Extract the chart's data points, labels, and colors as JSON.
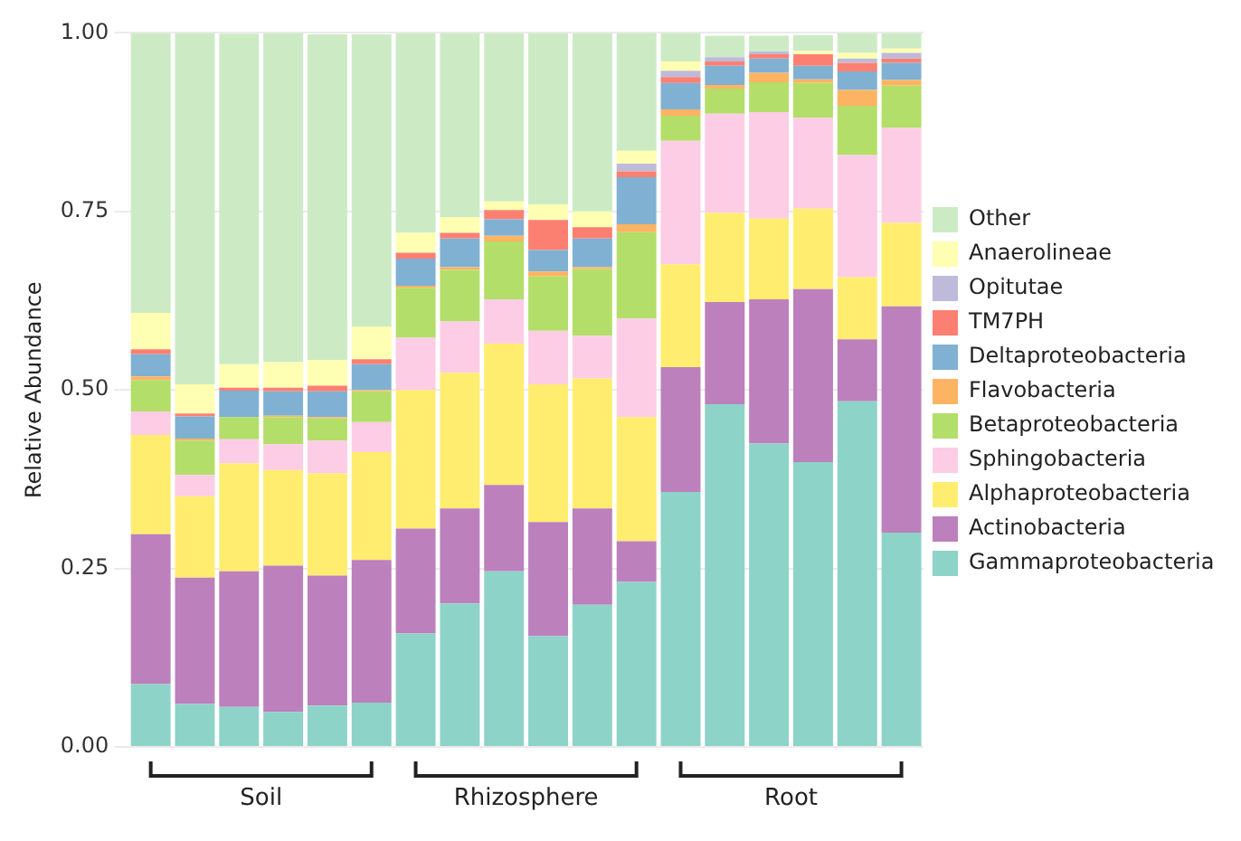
{
  "chart_data": {
    "type": "bar",
    "stacked": true,
    "ylabel": "Relative Abundance",
    "categories": [
      null,
      null,
      null,
      null,
      null,
      null,
      null,
      null,
      null,
      null,
      null,
      null,
      null,
      null,
      null,
      null,
      null,
      null
    ],
    "annotations": [
      "Soil",
      "Rhizosphere",
      "Root"
    ],
    "ylim": [
      0,
      1
    ],
    "yticks": [
      {
        "value": 0,
        "label": "0.00"
      },
      {
        "value": 0.25,
        "label": "0.25"
      },
      {
        "value": 0.5,
        "label": "0.50"
      },
      {
        "value": 0.75,
        "label": "0.75"
      },
      {
        "value": 1,
        "label": "1.00"
      }
    ],
    "grid": "y",
    "legend": "right",
    "tick_labels": "y",
    "series": [
      {
        "name": "Gammaproteobacteria",
        "color": "#8dd3c7",
        "values": [
          0.088,
          0.06,
          0.056,
          0.049,
          0.058,
          0.062,
          0.159,
          0.201,
          0.246,
          0.155,
          0.199,
          0.231,
          0.357,
          0.48,
          0.425,
          0.399,
          0.484,
          0.3
        ]
      },
      {
        "name": "Actinobacteria",
        "color": "#bc80bd",
        "values": [
          0.21,
          0.177,
          0.19,
          0.205,
          0.182,
          0.2,
          0.147,
          0.133,
          0.121,
          0.16,
          0.135,
          0.057,
          0.175,
          0.143,
          0.202,
          0.242,
          0.087,
          0.317
        ]
      },
      {
        "name": "Alphaproteobacteria",
        "color": "#ffed6f",
        "values": [
          0.139,
          0.114,
          0.151,
          0.134,
          0.143,
          0.151,
          0.194,
          0.19,
          0.198,
          0.193,
          0.182,
          0.174,
          0.144,
          0.125,
          0.113,
          0.113,
          0.087,
          0.117
        ]
      },
      {
        "name": "Sphingobacteria",
        "color": "#fccde5",
        "values": [
          0.033,
          0.03,
          0.034,
          0.036,
          0.046,
          0.042,
          0.073,
          0.072,
          0.062,
          0.075,
          0.06,
          0.138,
          0.173,
          0.139,
          0.149,
          0.127,
          0.171,
          0.133
        ]
      },
      {
        "name": "Betaproteobacteria",
        "color": "#b3de69",
        "values": [
          0.044,
          0.048,
          0.031,
          0.038,
          0.031,
          0.043,
          0.07,
          0.072,
          0.081,
          0.076,
          0.093,
          0.121,
          0.035,
          0.035,
          0.042,
          0.049,
          0.069,
          0.059
        ]
      },
      {
        "name": "Flavobacteria",
        "color": "#fdb462",
        "values": [
          0.005,
          0.003,
          null,
          0.002,
          0.002,
          0.002,
          0.003,
          0.004,
          0.008,
          0.007,
          0.003,
          0.011,
          0.009,
          0.005,
          0.013,
          0.005,
          0.022,
          0.008
        ]
      },
      {
        "name": "Deltaproteobacteria",
        "color": "#80b1d3",
        "values": [
          0.031,
          0.031,
          0.037,
          0.034,
          0.036,
          0.036,
          0.038,
          0.04,
          0.023,
          0.03,
          0.04,
          0.066,
          0.037,
          0.027,
          0.02,
          0.019,
          0.026,
          0.024
        ]
      },
      {
        "name": "TM7PH",
        "color": "#fb8072",
        "values": [
          0.007,
          0.004,
          0.004,
          0.005,
          0.008,
          0.007,
          0.008,
          0.008,
          0.013,
          0.042,
          0.016,
          0.008,
          0.008,
          0.006,
          0.006,
          0.016,
          0.012,
          0.006
        ]
      },
      {
        "name": "Opitutae",
        "color": "#bebada",
        "values": [
          0,
          0,
          0,
          0,
          0,
          0,
          0,
          0,
          0,
          0,
          0,
          0.011,
          0.009,
          0.006,
          0.004,
          null,
          0.006,
          0.008
        ]
      },
      {
        "name": "Anaerolineae",
        "color": "#ffffb3",
        "values": [
          0.051,
          0.041,
          0.033,
          0.036,
          0.036,
          0.046,
          0.028,
          0.022,
          0.012,
          0.022,
          0.022,
          0.018,
          0.013,
          null,
          null,
          0.005,
          0.008,
          0.006
        ]
      },
      {
        "name": "Other",
        "color": "#ccebc5",
        "values": [
          0.392,
          0.492,
          0.463,
          0.461,
          0.456,
          0.409,
          0.28,
          0.258,
          0.236,
          0.24,
          0.25,
          0.165,
          0.04,
          0.03,
          0.022,
          0.022,
          0.028,
          0.022
        ]
      }
    ]
  }
}
